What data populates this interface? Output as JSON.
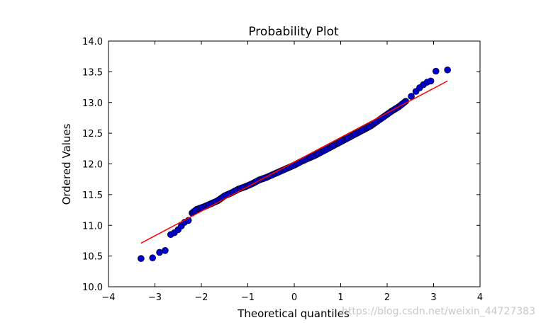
{
  "chart_data": {
    "type": "scatter",
    "title": "Probability Plot",
    "xlabel": "Theoretical quantiles",
    "ylabel": "Ordered Values",
    "xlim": [
      -4,
      4
    ],
    "ylim": [
      10.0,
      14.0
    ],
    "xticks": [
      -4,
      -3,
      -2,
      -1,
      0,
      1,
      2,
      3,
      4
    ],
    "xtick_labels": [
      "−4",
      "−3",
      "−2",
      "−1",
      "0",
      "1",
      "2",
      "3",
      "4"
    ],
    "yticks": [
      10.0,
      10.5,
      11.0,
      11.5,
      12.0,
      12.5,
      13.0,
      13.5,
      14.0
    ],
    "ytick_labels": [
      "10.0",
      "10.5",
      "11.0",
      "11.5",
      "12.0",
      "12.5",
      "13.0",
      "13.5",
      "14.0"
    ],
    "grid": false,
    "series": [
      {
        "type": "scatter",
        "color": "#0000cc",
        "points": [
          [
            -3.3,
            10.46
          ],
          [
            -3.05,
            10.47
          ],
          [
            -2.9,
            10.56
          ],
          [
            -2.78,
            10.59
          ],
          [
            -2.66,
            10.85
          ],
          [
            -2.58,
            10.88
          ],
          [
            -2.5,
            10.93
          ],
          [
            -2.43,
            10.99
          ],
          [
            -2.36,
            11.05
          ],
          [
            -2.28,
            11.08
          ],
          [
            -2.2,
            11.2
          ],
          [
            -2.1,
            11.26
          ],
          [
            -1.95,
            11.3
          ],
          [
            -1.8,
            11.35
          ],
          [
            -1.65,
            11.4
          ],
          [
            -1.5,
            11.48
          ],
          [
            -1.35,
            11.53
          ],
          [
            -1.2,
            11.59
          ],
          [
            -1.05,
            11.63
          ],
          [
            -0.9,
            11.68
          ],
          [
            -0.75,
            11.74
          ],
          [
            -0.6,
            11.78
          ],
          [
            -0.45,
            11.83
          ],
          [
            -0.3,
            11.88
          ],
          [
            -0.15,
            11.93
          ],
          [
            0.0,
            11.98
          ],
          [
            0.15,
            12.04
          ],
          [
            0.3,
            12.09
          ],
          [
            0.45,
            12.14
          ],
          [
            0.6,
            12.2
          ],
          [
            0.75,
            12.26
          ],
          [
            0.9,
            12.32
          ],
          [
            1.05,
            12.38
          ],
          [
            1.2,
            12.44
          ],
          [
            1.35,
            12.5
          ],
          [
            1.5,
            12.56
          ],
          [
            1.65,
            12.62
          ],
          [
            1.8,
            12.7
          ],
          [
            1.95,
            12.78
          ],
          [
            2.1,
            12.86
          ],
          [
            2.25,
            12.93
          ],
          [
            2.4,
            13.02
          ],
          [
            2.52,
            13.1
          ],
          [
            2.62,
            13.18
          ],
          [
            2.7,
            13.24
          ],
          [
            2.78,
            13.29
          ],
          [
            2.86,
            13.33
          ],
          [
            2.94,
            13.35
          ],
          [
            3.05,
            13.51
          ],
          [
            3.3,
            13.53
          ]
        ]
      },
      {
        "type": "line",
        "color": "#ff0000",
        "x": [
          -3.3,
          3.3
        ],
        "y": [
          10.71,
          13.35
        ]
      }
    ]
  },
  "watermark": "https://blog.csdn.net/weixin_44727383"
}
